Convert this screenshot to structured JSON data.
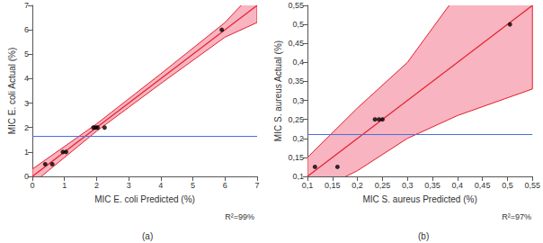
{
  "chart_data": [
    {
      "type": "scatter",
      "x_label": "MIC E. coli Predicted (%)",
      "y_label": "MIC E. coli Actual (%)",
      "xlim": [
        0,
        7
      ],
      "ylim": [
        0,
        7
      ],
      "xticks": [
        0,
        1,
        2,
        3,
        4,
        5,
        6,
        7
      ],
      "yticks": [
        0,
        1,
        2,
        3,
        4,
        5,
        6,
        7
      ],
      "grid": false,
      "x": [
        0.4,
        0.62,
        0.95,
        1.05,
        1.9,
        1.97,
        2.03,
        2.25,
        5.9
      ],
      "values": [
        0.5,
        0.5,
        1,
        1,
        2,
        2,
        2,
        2,
        6
      ],
      "color": "#000000",
      "fit": {
        "x": [
          0,
          7
        ],
        "y": [
          0,
          7
        ],
        "color": "#e3202a"
      },
      "band": {
        "x": [
          0,
          2,
          4,
          6,
          7
        ],
        "lower": [
          -0.3,
          1.85,
          3.8,
          5.7,
          6.3
        ],
        "upper": [
          0.3,
          2.15,
          4.2,
          6.3,
          7.7
        ],
        "color": "#f8b4c0",
        "edge_color": "#e3202a"
      },
      "mean_line": {
        "value": 1.65,
        "color": "#4a6fe3"
      },
      "annotation": "R²=99%",
      "panel_label": "(a)"
    },
    {
      "type": "scatter",
      "x_label": "MIC S. aureus Predicted (%)",
      "y_label": "MIC S. aureus Actual (%)",
      "xlim": [
        0.1,
        0.55
      ],
      "ylim": [
        0.1,
        0.55
      ],
      "xticks": [
        {
          "value": 0.1,
          "label": "0,1"
        },
        {
          "value": 0.15,
          "label": "0,15"
        },
        {
          "value": 0.2,
          "label": "0,2"
        },
        {
          "value": 0.25,
          "label": "0,25"
        },
        {
          "value": 0.3,
          "label": "0,3"
        },
        {
          "value": 0.35,
          "label": "0,35"
        },
        {
          "value": 0.4,
          "label": "0,4"
        },
        {
          "value": 0.45,
          "label": "0,45"
        },
        {
          "value": 0.5,
          "label": "0,5"
        },
        {
          "value": 0.55,
          "label": "0,55"
        }
      ],
      "yticks": [
        {
          "value": 0.1,
          "label": "0,1"
        },
        {
          "value": 0.15,
          "label": "0,15"
        },
        {
          "value": 0.2,
          "label": "0,2"
        },
        {
          "value": 0.25,
          "label": "0,25"
        },
        {
          "value": 0.3,
          "label": "0,3"
        },
        {
          "value": 0.35,
          "label": "0,35"
        },
        {
          "value": 0.4,
          "label": "0,4"
        },
        {
          "value": 0.45,
          "label": "0,45"
        },
        {
          "value": 0.5,
          "label": "0,5"
        },
        {
          "value": 0.55,
          "label": "0,55"
        }
      ],
      "grid": false,
      "x": [
        0.115,
        0.16,
        0.235,
        0.243,
        0.25,
        0.505
      ],
      "values": [
        0.125,
        0.125,
        0.25,
        0.25,
        0.25,
        0.5
      ],
      "color": "#000000",
      "fit": {
        "x": [
          0.1,
          0.55
        ],
        "y": [
          0.1,
          0.55
        ],
        "color": "#e3202a"
      },
      "band": {
        "x": [
          0.1,
          0.2,
          0.3,
          0.4,
          0.55
        ],
        "lower": [
          0.05,
          0.115,
          0.2,
          0.26,
          0.33
        ],
        "upper": [
          0.15,
          0.28,
          0.4,
          0.58,
          0.77
        ],
        "color": "#f8b4c0",
        "edge_color": "#e3202a"
      },
      "mean_line": {
        "value": 0.215,
        "color": "#4a6fe3"
      },
      "annotation": "R²=97%",
      "panel_label": "(b)"
    }
  ]
}
